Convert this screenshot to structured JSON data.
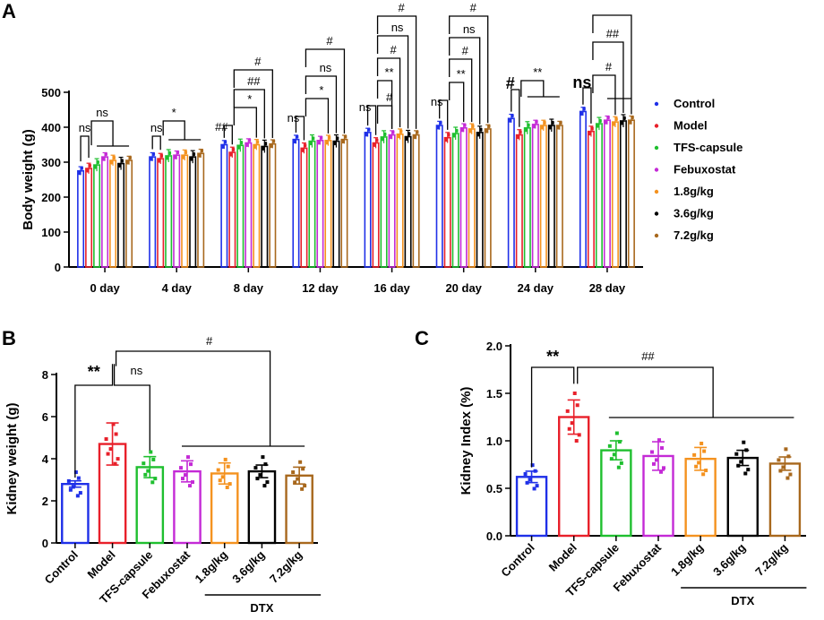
{
  "colors": {
    "Control": "#1f30e8",
    "Model": "#e8202a",
    "TFS-capsule": "#1fbf2f",
    "Febuxostat": "#c42ad6",
    "1.8g/kg": "#f4921f",
    "3.6g/kg": "#000000",
    "7.2g/kg": "#a8681d"
  },
  "chart_data": [
    {
      "panel": "A",
      "type": "bar",
      "ylabel": "Body weight (g)",
      "ylim": [
        0,
        500
      ],
      "yticks": [
        0,
        100,
        200,
        300,
        400,
        500
      ],
      "categories": [
        "0 day",
        "4 day",
        "8 day",
        "12 day",
        "16 day",
        "20 day",
        "24 day",
        "28 day"
      ],
      "legend": [
        "Control",
        "Model",
        "TFS-capsule",
        "Febuxostat",
        "1.8g/kg",
        "3.6g/kg",
        "7.2g/kg"
      ],
      "series": [
        {
          "name": "Control",
          "values": [
            275,
            315,
            350,
            365,
            385,
            405,
            425,
            445
          ]
        },
        {
          "name": "Model",
          "values": [
            282,
            310,
            328,
            340,
            355,
            370,
            378,
            388
          ]
        },
        {
          "name": "TFS-capsule",
          "values": [
            292,
            318,
            348,
            360,
            372,
            382,
            398,
            410
          ]
        },
        {
          "name": "Febuxostat",
          "values": [
            315,
            320,
            355,
            362,
            378,
            398,
            408,
            420
          ]
        },
        {
          "name": "1.8g/kg",
          "values": [
            305,
            320,
            350,
            362,
            380,
            395,
            405,
            415
          ]
        },
        {
          "name": "3.6g/kg",
          "values": [
            296,
            315,
            345,
            360,
            373,
            385,
            405,
            418
          ]
        },
        {
          "name": "7.2g/kg",
          "values": [
            305,
            325,
            352,
            365,
            378,
            395,
            405,
            420
          ]
        }
      ],
      "annotations": [
        "ns",
        "ns",
        "ns",
        "*",
        "##",
        "#",
        "##",
        "*",
        "ns",
        "#",
        "ns",
        "*",
        "ns",
        "#",
        "#",
        "ns",
        "#",
        "**",
        "ns",
        "#",
        "ns",
        "#",
        "**",
        "#",
        "**",
        "ns",
        "#",
        "##"
      ]
    },
    {
      "panel": "B",
      "type": "bar",
      "ylabel": "Kidney weight (g)",
      "ylim": [
        0,
        8
      ],
      "yticks": [
        0,
        2,
        4,
        6,
        8
      ],
      "categories": [
        "Control",
        "Model",
        "TFS-capsule",
        "Febuxostat",
        "1.8g/kg",
        "3.6g/kg",
        "7.2g/kg"
      ],
      "values": [
        2.8,
        4.7,
        3.6,
        3.4,
        3.3,
        3.4,
        3.2
      ],
      "errors": [
        0.15,
        1.0,
        0.5,
        0.5,
        0.5,
        0.3,
        0.4
      ],
      "group_label": "DTX",
      "annotations": [
        "**",
        "ns",
        "#"
      ]
    },
    {
      "panel": "C",
      "type": "bar",
      "ylabel": "Kidney Index (%)",
      "ylim": [
        0,
        2.0
      ],
      "yticks": [
        "0.0",
        "0.5",
        "1.0",
        "1.5",
        "2.0"
      ],
      "categories": [
        "Control",
        "Model",
        "TFS-capsule",
        "Febuxostat",
        "1.8g/kg",
        "3.6g/kg",
        "7.2g/kg"
      ],
      "values": [
        0.62,
        1.25,
        0.9,
        0.84,
        0.81,
        0.82,
        0.76
      ],
      "errors": [
        0.06,
        0.18,
        0.1,
        0.15,
        0.12,
        0.08,
        0.07
      ],
      "group_label": "DTX",
      "annotations": [
        "**",
        "##"
      ]
    }
  ],
  "panel_labels": [
    "A",
    "B",
    "C"
  ]
}
